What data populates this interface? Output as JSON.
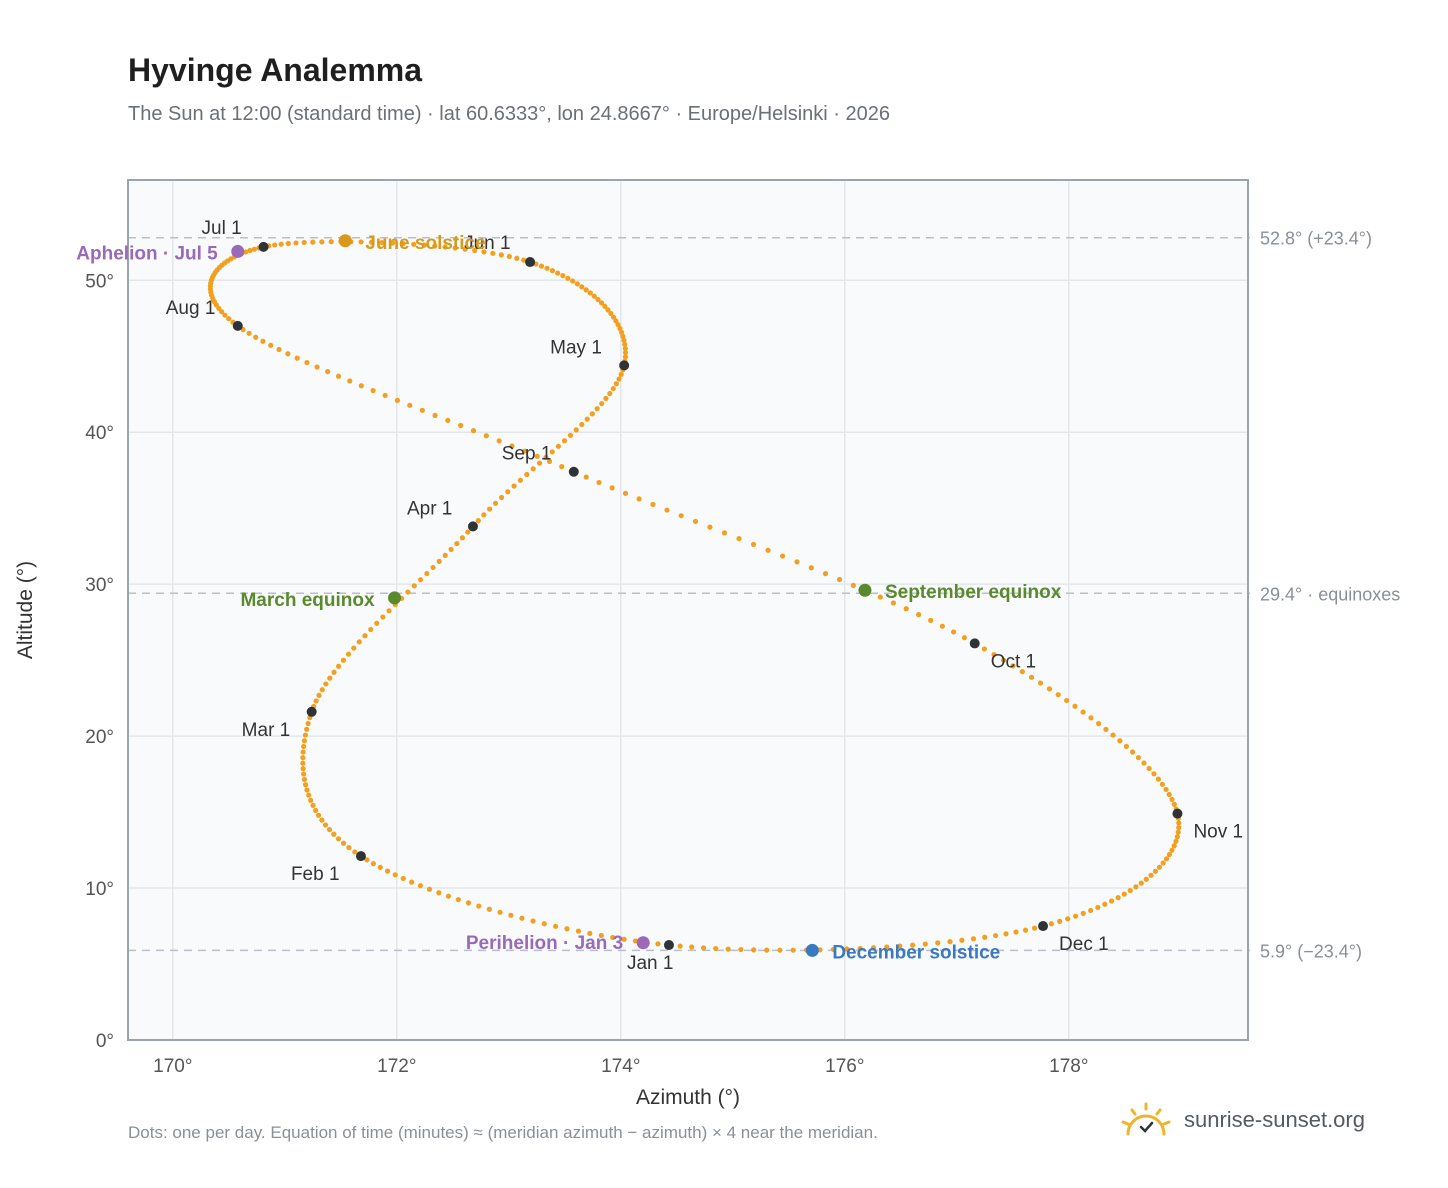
{
  "title": "Hyvinge Analemma",
  "subtitle": "The Sun at 12:00 (standard time) · lat 60.6333°, lon 24.8667° · Europe/Helsinki · 2026",
  "footnote": "Dots: one per day. Equation of time (minutes) ≈ (meridian azimuth − azimuth) × 4 near the meridian.",
  "brand": "sunrise-sunset.org",
  "colors": {
    "curve": "#f2a020",
    "month_dot": "#2e3338",
    "solstice_june": "#d99a1a",
    "equinox": "#5a8a2e",
    "solstice_december": "#3a78c2",
    "apsis": "#9a6ab8",
    "plot_bg": "#f8fafc",
    "grid": "#e3e7ec",
    "ref_line": "#b8c0cc",
    "brand_icon": "#f0b429"
  },
  "chart_data": {
    "type": "scatter",
    "title": "Hyvinge Analemma",
    "xlabel": "Azimuth (°)",
    "ylabel": "Altitude (°)",
    "xlim": [
      169.6,
      179.6
    ],
    "ylim": [
      0,
      56.6
    ],
    "grid": true,
    "x_ticks": [
      170,
      172,
      174,
      176,
      178
    ],
    "x_tick_labels": [
      "170°",
      "172°",
      "174°",
      "176°",
      "178°"
    ],
    "y_ticks": [
      0,
      10,
      20,
      30,
      40,
      50
    ],
    "y_tick_labels": [
      "0°",
      "10°",
      "20°",
      "30°",
      "40°",
      "50°"
    ],
    "reference_lines": [
      {
        "y": 52.8,
        "label": "52.8° (+23.4°)"
      },
      {
        "y": 29.4,
        "label": "29.4° · equinoxes"
      },
      {
        "y": 5.9,
        "label": "5.9° (−23.4°)"
      }
    ],
    "month_markers": [
      {
        "label": "Jan 1",
        "x": 174.43,
        "y": 6.25
      },
      {
        "label": "Feb 1",
        "x": 171.68,
        "y": 12.1
      },
      {
        "label": "Mar 1",
        "x": 171.24,
        "y": 21.6
      },
      {
        "label": "Apr 1",
        "x": 172.68,
        "y": 33.8
      },
      {
        "label": "May 1",
        "x": 174.03,
        "y": 44.4
      },
      {
        "label": "Jun 1",
        "x": 173.19,
        "y": 51.2
      },
      {
        "label": "Jul 1",
        "x": 170.81,
        "y": 52.2
      },
      {
        "label": "Aug 1",
        "x": 170.58,
        "y": 47.0
      },
      {
        "label": "Sep 1",
        "x": 173.58,
        "y": 37.4
      },
      {
        "label": "Oct 1",
        "x": 177.16,
        "y": 26.1
      },
      {
        "label": "Nov 1",
        "x": 178.97,
        "y": 14.9
      },
      {
        "label": "Dec 1",
        "x": 177.77,
        "y": 7.5
      }
    ],
    "events": [
      {
        "label": "June solstice",
        "x": 171.54,
        "y": 52.6,
        "kind": "solstice_june"
      },
      {
        "label": "March equinox",
        "x": 171.98,
        "y": 29.1,
        "kind": "equinox"
      },
      {
        "label": "September equinox",
        "x": 176.18,
        "y": 29.6,
        "kind": "equinox"
      },
      {
        "label": "December solstice",
        "x": 175.71,
        "y": 5.9,
        "kind": "solstice_december"
      },
      {
        "label": "Aphelion · Jul 5",
        "x": 170.58,
        "y": 51.9,
        "kind": "apsis"
      },
      {
        "label": "Perihelion · Jan 3",
        "x": 174.2,
        "y": 6.4,
        "kind": "apsis"
      }
    ],
    "series": [
      {
        "kind": "daily",
        "points": [
          [
            174.43,
            6.25
          ],
          [
            171.68,
            12.1
          ],
          [
            171.24,
            21.6
          ],
          [
            172.68,
            33.8
          ],
          [
            174.03,
            44.4
          ],
          [
            173.19,
            51.2
          ],
          [
            170.81,
            52.2
          ],
          [
            170.58,
            47.0
          ],
          [
            173.58,
            37.4
          ],
          [
            177.16,
            26.1
          ],
          [
            178.97,
            14.9
          ],
          [
            177.77,
            7.5
          ],
          [
            174.43,
            6.25
          ]
        ]
      }
    ]
  }
}
